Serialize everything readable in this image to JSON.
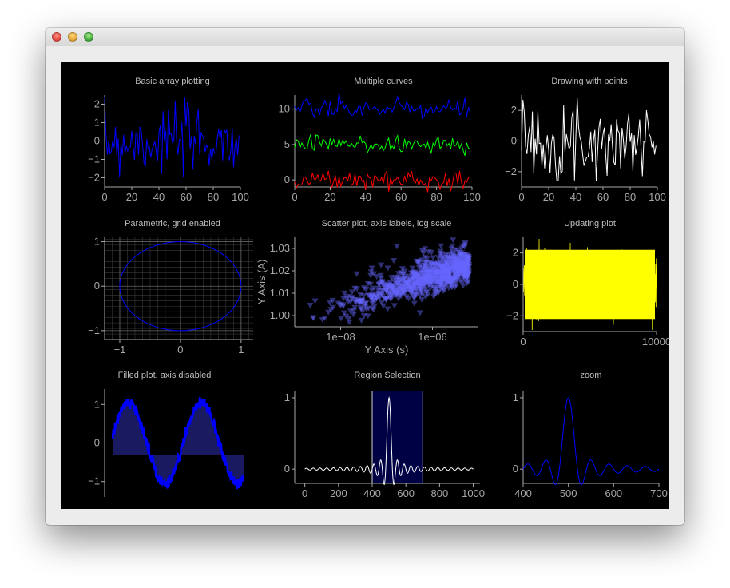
{
  "window": {
    "title": ""
  },
  "plots": [
    {
      "title": "Basic array plotting",
      "x_ticks": [
        "0",
        "20",
        "40",
        "60",
        "80",
        "100"
      ],
      "y_ticks": [
        "2",
        "1",
        "0",
        "−1",
        "−2"
      ]
    },
    {
      "title": "Multiple curves",
      "x_ticks": [
        "0",
        "20",
        "40",
        "60",
        "80",
        "100"
      ],
      "y_ticks": [
        "10",
        "5",
        "0"
      ]
    },
    {
      "title": "Drawing with points",
      "x_ticks": [
        "0",
        "20",
        "40",
        "60",
        "80",
        "100"
      ],
      "y_ticks": [
        "2",
        "0",
        "−2"
      ]
    },
    {
      "title": "Parametric, grid enabled",
      "x_ticks": [
        "−1",
        "0",
        "1"
      ],
      "y_ticks": [
        "1",
        "0",
        "−1"
      ]
    },
    {
      "title": "Scatter plot, axis labels, log scale",
      "x_ticks": [
        "1e−08",
        "1e−06"
      ],
      "y_ticks": [
        "1.03",
        "1.02",
        "1.01",
        "1.00"
      ],
      "xlabel": "Y Axis (s)",
      "ylabel": "Y Axis (A)"
    },
    {
      "title": "Updating plot",
      "x_ticks": [
        "0",
        "10000"
      ],
      "y_ticks": [
        "2",
        "0",
        "−2"
      ]
    },
    {
      "title": "Filled plot, axis disabled",
      "x_ticks": [],
      "y_ticks": [
        "1",
        "0",
        "−1"
      ]
    },
    {
      "title": "Region Selection",
      "x_ticks": [
        "0",
        "200",
        "400",
        "600",
        "800",
        "1000"
      ],
      "y_ticks": [
        "1",
        "0"
      ]
    },
    {
      "title": "zoom",
      "x_ticks": [
        "400",
        "500",
        "600",
        "700"
      ],
      "y_ticks": [
        "1",
        "0"
      ]
    }
  ],
  "chart_data": [
    {
      "type": "line",
      "title": "Basic array plotting",
      "series": [
        {
          "color": "#0000ff",
          "x_range": [
            0,
            99
          ],
          "y_range": [
            -2.2,
            2.5
          ],
          "noise": "random normal"
        }
      ],
      "xlim": [
        0,
        100
      ],
      "ylim": [
        -2.5,
        2.5
      ]
    },
    {
      "type": "line",
      "title": "Multiple curves",
      "series": [
        {
          "color": "#0000ff",
          "center": 10
        },
        {
          "color": "#00ff00",
          "center": 5
        },
        {
          "color": "#ff0000",
          "center": 0
        }
      ],
      "xlim": [
        0,
        100
      ],
      "ylim": [
        -1,
        12
      ]
    },
    {
      "type": "line",
      "title": "Drawing with points",
      "series": [
        {
          "color": "#ffffff",
          "center": 0
        }
      ],
      "xlim": [
        0,
        100
      ],
      "ylim": [
        -3,
        3
      ]
    },
    {
      "type": "line",
      "title": "Parametric, grid enabled",
      "series": [
        {
          "color": "#0000ff",
          "shape": "unit circle"
        }
      ],
      "grid": true,
      "xlim": [
        -1.25,
        1.2
      ],
      "ylim": [
        -1.2,
        1.1
      ]
    },
    {
      "type": "scatter",
      "title": "Scatter plot, axis labels, log scale",
      "xlabel": "Y Axis (s)",
      "ylabel": "Y Axis (A)",
      "log_x": true,
      "marker": "triangle-down",
      "color": "#6666ff",
      "xlim": [
        1e-09,
        1e-05
      ],
      "ylim": [
        0.995,
        1.035
      ]
    },
    {
      "type": "line",
      "title": "Updating plot",
      "series": [
        {
          "color": "#ffff00",
          "center": 0
        }
      ],
      "xlim": [
        0,
        10000
      ],
      "ylim": [
        -3,
        3
      ]
    },
    {
      "type": "area",
      "title": "Filled plot, axis disabled",
      "series": [
        {
          "color": "#0000ff",
          "fill": "#1a1a60",
          "shape": "sine with noise",
          "fill_level": -0.3
        }
      ],
      "ylim": [
        -1.4,
        1.4
      ]
    },
    {
      "type": "line",
      "title": "Region Selection",
      "series": [
        {
          "color": "#ffffff",
          "shape": "sinc"
        }
      ],
      "region": [
        400,
        700
      ],
      "xlim": [
        -60,
        1040
      ],
      "ylim": [
        -0.2,
        1.1
      ]
    },
    {
      "type": "line",
      "title": "zoom",
      "series": [
        {
          "color": "#0000ff",
          "shape": "sinc"
        }
      ],
      "xlim": [
        400,
        700
      ],
      "ylim": [
        -0.2,
        1.1
      ]
    }
  ]
}
